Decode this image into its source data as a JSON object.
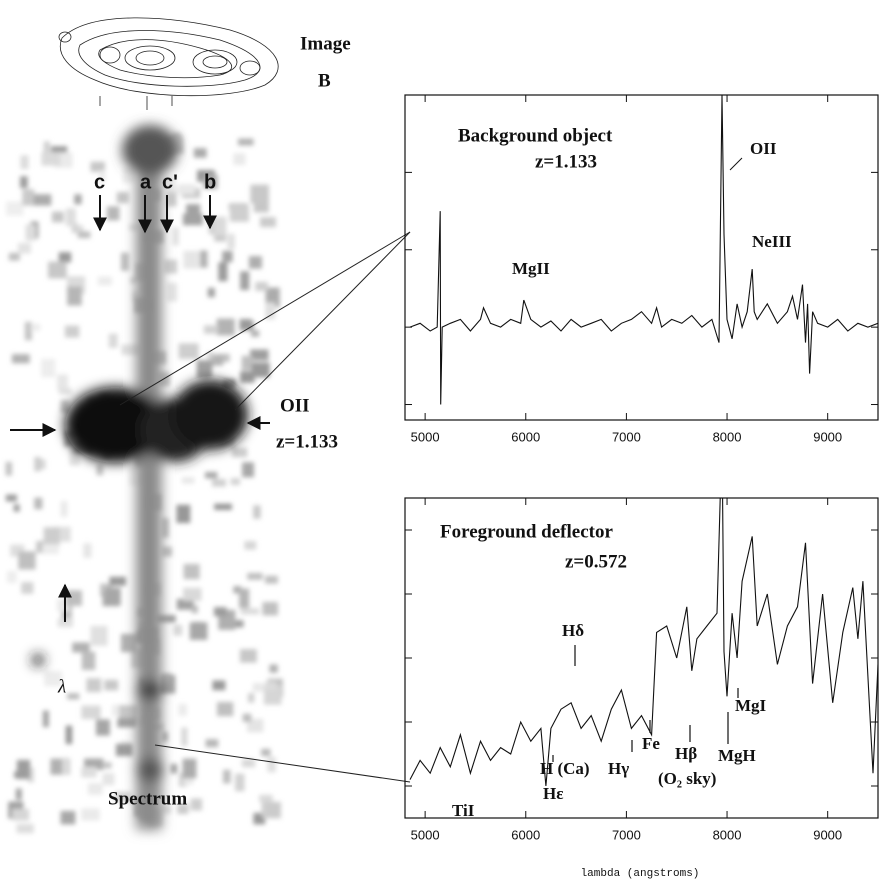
{
  "figure": {
    "image_label": "Image",
    "image_id": "B",
    "components": [
      "c",
      "a",
      "c'",
      "b"
    ],
    "line_label": "OII",
    "redshift": "z=1.133",
    "lambda": "λ",
    "spectrum_label": "Spectrum"
  },
  "chart_data": [
    {
      "type": "line",
      "title": "Background object",
      "subtitle": "z=1.133",
      "annotations": [
        "OII",
        "MgII",
        "NeIII"
      ],
      "xlim": [
        4800,
        9500
      ],
      "xticks": [
        5000,
        6000,
        7000,
        8000,
        9000
      ],
      "ylim": [
        -1.2,
        3.0
      ],
      "yticks": [
        -1,
        0,
        1,
        2,
        3
      ],
      "series": [
        {
          "color": "#111111",
          "x": [
            4850,
            4950,
            5050,
            5120,
            5150,
            5155,
            5170,
            5250,
            5350,
            5450,
            5550,
            5580,
            5650,
            5750,
            5850,
            5950,
            5980,
            6050,
            6150,
            6250,
            6350,
            6450,
            6550,
            6650,
            6750,
            6850,
            6950,
            7050,
            7150,
            7250,
            7300,
            7350,
            7450,
            7550,
            7650,
            7750,
            7850,
            7920,
            7950,
            7970,
            8000,
            8050,
            8100,
            8150,
            8200,
            8250,
            8270,
            8300,
            8400,
            8500,
            8600,
            8650,
            8700,
            8750,
            8780,
            8800,
            8820,
            8850,
            8900,
            9000,
            9100,
            9200,
            9300,
            9400,
            9500
          ],
          "values": [
            0.0,
            0.05,
            -0.05,
            0.0,
            1.5,
            -1.0,
            0.0,
            0.05,
            0.1,
            -0.05,
            0.1,
            0.25,
            0.05,
            0.0,
            0.1,
            0.05,
            0.35,
            0.1,
            0.0,
            0.08,
            -0.05,
            0.1,
            0.0,
            0.05,
            0.1,
            -0.05,
            0.05,
            0.1,
            0.2,
            0.05,
            0.25,
            0.0,
            0.1,
            0.05,
            0.15,
            0.0,
            0.1,
            -0.2,
            3.0,
            1.2,
            0.1,
            -0.15,
            0.3,
            0.0,
            0.2,
            0.75,
            0.2,
            0.1,
            0.3,
            0.05,
            0.2,
            0.4,
            0.1,
            0.55,
            -0.2,
            0.3,
            -0.6,
            0.2,
            0.05,
            0.0,
            0.1,
            -0.05,
            0.05,
            0.0,
            0.05
          ]
        }
      ]
    },
    {
      "type": "line",
      "title": "Foreground deflector",
      "subtitle": "z=0.572",
      "xlabel": "lambda (angstroms)",
      "annotations": [
        "Hδ",
        "TiI",
        "H (Ca)",
        "Hε",
        "Hγ",
        "Fe",
        "Hβ",
        "(O₂ sky)",
        "MgH",
        "MgI"
      ],
      "xlim": [
        4800,
        9500
      ],
      "xticks": [
        5000,
        6000,
        7000,
        8000,
        9000
      ],
      "ylim": [
        0,
        5
      ],
      "yticks": [
        0.5,
        1.5,
        2.5,
        3.5,
        4.5
      ],
      "series": [
        {
          "color": "#111111",
          "x": [
            4850,
            4950,
            5050,
            5150,
            5250,
            5350,
            5450,
            5550,
            5650,
            5750,
            5850,
            5950,
            6050,
            6150,
            6200,
            6250,
            6350,
            6450,
            6550,
            6650,
            6750,
            6850,
            6950,
            7050,
            7150,
            7250,
            7300,
            7400,
            7500,
            7600,
            7650,
            7700,
            7800,
            7900,
            7950,
            7970,
            8000,
            8050,
            8100,
            8150,
            8250,
            8300,
            8400,
            8500,
            8600,
            8700,
            8780,
            8850,
            8950,
            9050,
            9150,
            9250,
            9300,
            9350,
            9450,
            9500
          ],
          "values": [
            0.6,
            0.9,
            0.7,
            1.1,
            0.8,
            1.3,
            0.7,
            1.2,
            0.9,
            1.1,
            1.0,
            1.5,
            1.2,
            1.4,
            0.5,
            1.4,
            1.7,
            1.8,
            1.4,
            1.6,
            1.2,
            1.7,
            2.0,
            1.4,
            1.6,
            1.3,
            2.9,
            3.0,
            2.5,
            3.3,
            2.3,
            2.8,
            3.0,
            3.2,
            6.0,
            2.6,
            1.9,
            3.2,
            2.5,
            3.7,
            4.4,
            3.0,
            3.5,
            2.4,
            3.0,
            3.3,
            4.3,
            2.1,
            3.5,
            1.8,
            2.9,
            3.6,
            2.8,
            3.7,
            0.7,
            2.4
          ]
        }
      ]
    }
  ]
}
